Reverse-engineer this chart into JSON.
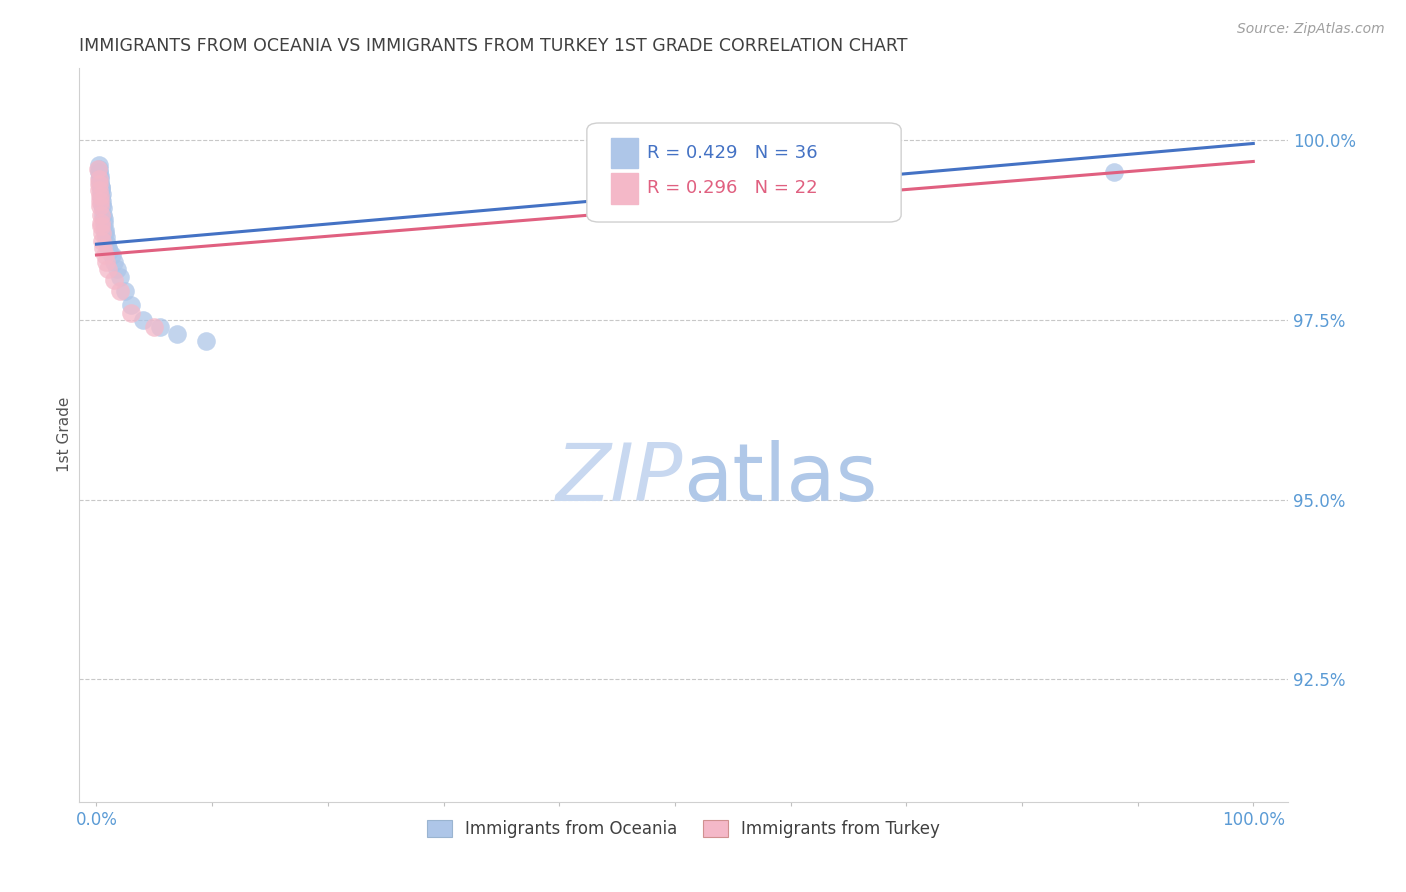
{
  "title": "IMMIGRANTS FROM OCEANIA VS IMMIGRANTS FROM TURKEY 1ST GRADE CORRELATION CHART",
  "source": "Source: ZipAtlas.com",
  "ylabel": "1st Grade",
  "ytick_values": [
    100.0,
    97.5,
    95.0,
    92.5
  ],
  "ymin": 90.8,
  "ymax": 101.0,
  "xmin": -1.5,
  "xmax": 103.0,
  "legend_blue_r": "R = 0.429",
  "legend_blue_n": "N = 36",
  "legend_pink_r": "R = 0.296",
  "legend_pink_n": "N = 22",
  "legend_label_blue": "Immigrants from Oceania",
  "legend_label_pink": "Immigrants from Turkey",
  "blue_color": "#aec6e8",
  "pink_color": "#f4b8c8",
  "blue_line_color": "#4472c4",
  "pink_line_color": "#e06080",
  "title_color": "#404040",
  "axis_label_color": "#5b9bd5",
  "grid_color": "#c8c8c8",
  "watermark_zip_color": "#c8d8f0",
  "watermark_atlas_color": "#b0c8e8",
  "blue_scatter_x": [
    0.18,
    0.22,
    0.25,
    0.28,
    0.3,
    0.32,
    0.35,
    0.38,
    0.4,
    0.42,
    0.45,
    0.48,
    0.5,
    0.55,
    0.58,
    0.62,
    0.65,
    0.7,
    0.75,
    0.8,
    0.9,
    1.0,
    1.1,
    1.3,
    1.5,
    1.8,
    2.0,
    2.5,
    3.0,
    4.0,
    5.5,
    7.0,
    9.5,
    52.0,
    65.0,
    88.0
  ],
  "blue_scatter_y": [
    99.65,
    99.55,
    99.6,
    99.5,
    99.45,
    99.4,
    99.35,
    99.3,
    99.2,
    99.35,
    99.25,
    99.15,
    99.1,
    99.05,
    98.95,
    98.9,
    98.85,
    98.75,
    98.7,
    98.65,
    98.55,
    98.5,
    98.45,
    98.4,
    98.3,
    98.2,
    98.1,
    97.9,
    97.7,
    97.5,
    97.4,
    97.3,
    97.2,
    99.4,
    99.5,
    99.55
  ],
  "pink_scatter_x": [
    0.15,
    0.2,
    0.22,
    0.25,
    0.28,
    0.3,
    0.32,
    0.35,
    0.38,
    0.4,
    0.45,
    0.5,
    0.6,
    0.7,
    0.8,
    1.0,
    1.5,
    2.0,
    3.0,
    5.0,
    62.0,
    67.0
  ],
  "pink_scatter_y": [
    99.6,
    99.45,
    99.38,
    99.3,
    99.22,
    99.15,
    99.08,
    98.95,
    98.85,
    98.8,
    98.7,
    98.6,
    98.5,
    98.4,
    98.3,
    98.2,
    98.05,
    97.9,
    97.6,
    97.4,
    99.45,
    99.52
  ],
  "blue_line_x": [
    0.0,
    100.0
  ],
  "blue_line_y": [
    98.55,
    99.95
  ],
  "pink_line_x": [
    0.0,
    100.0
  ],
  "pink_line_y": [
    98.4,
    99.7
  ]
}
